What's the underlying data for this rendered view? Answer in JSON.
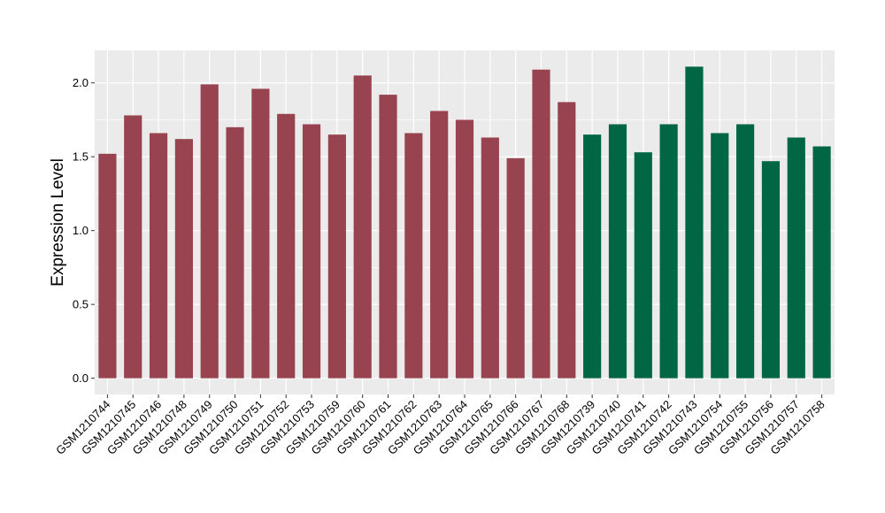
{
  "chart_data": {
    "type": "bar",
    "ylabel": "Expression Level",
    "xlabel": "",
    "ylim": [
      -0.11,
      2.22
    ],
    "yticks": [
      0.0,
      0.5,
      1.0,
      1.5,
      2.0
    ],
    "ytick_labels": [
      "0.0",
      "0.5",
      "1.0",
      "1.5",
      "2.0"
    ],
    "grid": true,
    "legend": "none",
    "group_colors": {
      "group1": "#984450",
      "group2": "#006644"
    },
    "panel_color": "#ebebeb",
    "gridline_color": "#ffffff",
    "bars": [
      {
        "category": "GSM1210744",
        "value": 1.52,
        "group": "group1"
      },
      {
        "category": "GSM1210745",
        "value": 1.78,
        "group": "group1"
      },
      {
        "category": "GSM1210746",
        "value": 1.66,
        "group": "group1"
      },
      {
        "category": "GSM1210748",
        "value": 1.62,
        "group": "group1"
      },
      {
        "category": "GSM1210749",
        "value": 1.99,
        "group": "group1"
      },
      {
        "category": "GSM1210750",
        "value": 1.7,
        "group": "group1"
      },
      {
        "category": "GSM1210751",
        "value": 1.96,
        "group": "group1"
      },
      {
        "category": "GSM1210752",
        "value": 1.79,
        "group": "group1"
      },
      {
        "category": "GSM1210753",
        "value": 1.72,
        "group": "group1"
      },
      {
        "category": "GSM1210759",
        "value": 1.65,
        "group": "group1"
      },
      {
        "category": "GSM1210760",
        "value": 2.05,
        "group": "group1"
      },
      {
        "category": "GSM1210761",
        "value": 1.92,
        "group": "group1"
      },
      {
        "category": "GSM1210762",
        "value": 1.66,
        "group": "group1"
      },
      {
        "category": "GSM1210763",
        "value": 1.81,
        "group": "group1"
      },
      {
        "category": "GSM1210764",
        "value": 1.75,
        "group": "group1"
      },
      {
        "category": "GSM1210765",
        "value": 1.63,
        "group": "group1"
      },
      {
        "category": "GSM1210766",
        "value": 1.49,
        "group": "group1"
      },
      {
        "category": "GSM1210767",
        "value": 2.09,
        "group": "group1"
      },
      {
        "category": "GSM1210768",
        "value": 1.87,
        "group": "group1"
      },
      {
        "category": "GSM1210739",
        "value": 1.65,
        "group": "group2"
      },
      {
        "category": "GSM1210740",
        "value": 1.72,
        "group": "group2"
      },
      {
        "category": "GSM1210741",
        "value": 1.53,
        "group": "group2"
      },
      {
        "category": "GSM1210742",
        "value": 1.72,
        "group": "group2"
      },
      {
        "category": "GSM1210743",
        "value": 2.11,
        "group": "group2"
      },
      {
        "category": "GSM1210754",
        "value": 1.66,
        "group": "group2"
      },
      {
        "category": "GSM1210755",
        "value": 1.72,
        "group": "group2"
      },
      {
        "category": "GSM1210756",
        "value": 1.47,
        "group": "group2"
      },
      {
        "category": "GSM1210757",
        "value": 1.63,
        "group": "group2"
      },
      {
        "category": "GSM1210758",
        "value": 1.57,
        "group": "group2"
      }
    ]
  }
}
